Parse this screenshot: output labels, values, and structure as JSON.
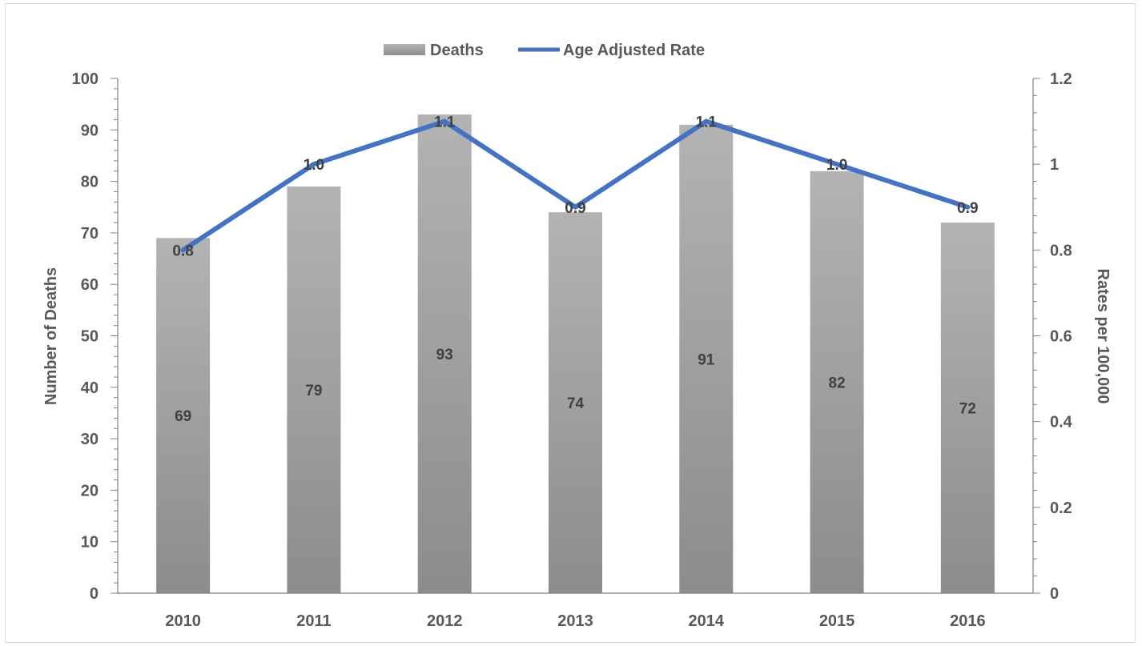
{
  "chart_data": {
    "type": "bar",
    "categories": [
      "2010",
      "2011",
      "2012",
      "2013",
      "2014",
      "2015",
      "2016"
    ],
    "series": [
      {
        "name": "Deaths",
        "type": "bar",
        "axis": "left",
        "values": [
          69,
          79,
          93,
          74,
          91,
          82,
          72
        ],
        "labels": [
          "69",
          "79",
          "93",
          "74",
          "91",
          "82",
          "72"
        ],
        "color": "#a6a6a6"
      },
      {
        "name": "Age Adjusted Rate",
        "type": "line",
        "axis": "right",
        "values": [
          0.8,
          1.0,
          1.1,
          0.9,
          1.1,
          1.0,
          0.9
        ],
        "labels": [
          "0.8",
          "1.0",
          "1.1",
          "0.9",
          "1.1",
          "1.0",
          "0.9"
        ],
        "color": "#4472c4"
      }
    ],
    "ylabel": "Number of Deaths",
    "y2label": "Rates per 100,000",
    "ylim": [
      0,
      100
    ],
    "y2lim": [
      0,
      1.2
    ],
    "yticks": [
      "0",
      "10",
      "20",
      "30",
      "40",
      "50",
      "60",
      "70",
      "80",
      "90",
      "100"
    ],
    "y2ticks": [
      "0",
      "0.2",
      "0.4",
      "0.6",
      "0.8",
      "1",
      "1.2"
    ],
    "grid": false,
    "legend_position": "top-center"
  }
}
